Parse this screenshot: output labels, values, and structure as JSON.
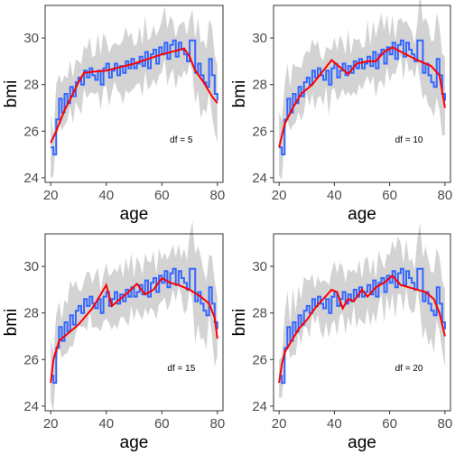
{
  "figure": {
    "panels": [
      "df = 5",
      "df = 10",
      "df = 15",
      "df = 20"
    ]
  },
  "chart_data": [
    {
      "type": "line",
      "xlabel": "age",
      "ylabel": "bmi",
      "annotation": "df = 5",
      "xlim": [
        18,
        82
      ],
      "ylim": [
        23.8,
        31.4
      ],
      "xticks": [
        20,
        40,
        60,
        80
      ],
      "yticks": [
        24,
        26,
        28,
        30
      ],
      "grid": false,
      "series": [
        {
          "role": "observed",
          "color": "#3366ff",
          "x": [
            20,
            21,
            22,
            23,
            24,
            25,
            26,
            27,
            28,
            29,
            30,
            31,
            32,
            33,
            34,
            35,
            36,
            37,
            38,
            39,
            40,
            41,
            42,
            43,
            44,
            45,
            46,
            47,
            48,
            49,
            50,
            51,
            52,
            53,
            54,
            55,
            56,
            57,
            58,
            59,
            60,
            61,
            62,
            63,
            64,
            65,
            66,
            67,
            68,
            69,
            70,
            71,
            72,
            73,
            74,
            75,
            76,
            77,
            78,
            79,
            80
          ],
          "y": [
            25.3,
            25.0,
            26.5,
            27.4,
            26.8,
            27.6,
            27.2,
            27.9,
            27.5,
            28.1,
            28.3,
            28.0,
            28.6,
            28.3,
            28.7,
            28.4,
            28.2,
            28.6,
            28.0,
            28.7,
            28.9,
            28.3,
            28.6,
            28.9,
            28.4,
            28.8,
            28.5,
            29.0,
            28.7,
            29.1,
            28.7,
            28.9,
            29.2,
            28.8,
            29.4,
            28.7,
            29.3,
            29.5,
            28.9,
            29.6,
            29.3,
            29.8,
            29.1,
            29.7,
            29.9,
            29.2,
            29.8,
            29.5,
            29.3,
            29.0,
            29.9,
            29.9,
            28.5,
            28.9,
            28.4,
            28.1,
            27.9,
            29.1,
            28.4,
            27.6,
            27.3
          ]
        },
        {
          "role": "fitted",
          "color": "#ff0000",
          "x": [
            20,
            22,
            25,
            28,
            30,
            32,
            35,
            40,
            45,
            50,
            55,
            60,
            65,
            68,
            70,
            72,
            75,
            78,
            80
          ],
          "y": [
            25.5,
            26.0,
            26.9,
            27.6,
            28.1,
            28.5,
            28.55,
            28.6,
            28.75,
            28.9,
            29.1,
            29.3,
            29.45,
            29.55,
            29.2,
            28.6,
            28.1,
            27.5,
            27.2
          ]
        }
      ]
    },
    {
      "type": "line",
      "xlabel": "age",
      "ylabel": "bmi",
      "annotation": "df = 10",
      "xlim": [
        18,
        82
      ],
      "ylim": [
        23.8,
        31.4
      ],
      "xticks": [
        20,
        40,
        60,
        80
      ],
      "yticks": [
        24,
        26,
        28,
        30
      ],
      "grid": false,
      "series": [
        {
          "role": "observed",
          "color": "#3366ff",
          "x": [
            20,
            21,
            22,
            23,
            24,
            25,
            26,
            27,
            28,
            29,
            30,
            31,
            32,
            33,
            34,
            35,
            36,
            37,
            38,
            39,
            40,
            41,
            42,
            43,
            44,
            45,
            46,
            47,
            48,
            49,
            50,
            51,
            52,
            53,
            54,
            55,
            56,
            57,
            58,
            59,
            60,
            61,
            62,
            63,
            64,
            65,
            66,
            67,
            68,
            69,
            70,
            71,
            72,
            73,
            74,
            75,
            76,
            77,
            78,
            79,
            80
          ],
          "y": [
            25.3,
            25.0,
            26.5,
            27.4,
            26.8,
            27.6,
            27.2,
            27.9,
            27.5,
            28.1,
            28.3,
            28.0,
            28.6,
            28.3,
            28.7,
            28.4,
            28.2,
            28.6,
            28.0,
            28.7,
            28.9,
            28.3,
            28.6,
            28.9,
            28.4,
            28.8,
            28.5,
            29.0,
            28.7,
            29.1,
            28.7,
            28.9,
            29.2,
            28.8,
            29.4,
            28.7,
            29.3,
            29.5,
            28.9,
            29.6,
            29.3,
            29.8,
            29.1,
            29.7,
            29.9,
            29.2,
            29.8,
            29.5,
            29.3,
            29.0,
            29.9,
            29.9,
            28.5,
            28.9,
            28.4,
            28.1,
            27.9,
            29.1,
            28.4,
            27.6,
            27.3
          ]
        },
        {
          "role": "fitted",
          "color": "#ff0000",
          "x": [
            20,
            22,
            25,
            28,
            32,
            36,
            39,
            42,
            45,
            48,
            52,
            55,
            58,
            61,
            65,
            70,
            75,
            78,
            80
          ],
          "y": [
            25.3,
            26.3,
            27.0,
            27.6,
            28.0,
            28.6,
            29.05,
            28.75,
            28.45,
            28.9,
            29.0,
            29.0,
            29.4,
            29.6,
            29.35,
            29.05,
            28.8,
            28.4,
            27.0
          ]
        }
      ]
    },
    {
      "type": "line",
      "xlabel": "age",
      "ylabel": "bmi",
      "annotation": "df = 15",
      "xlim": [
        18,
        82
      ],
      "ylim": [
        23.8,
        31.4
      ],
      "xticks": [
        20,
        40,
        60,
        80
      ],
      "yticks": [
        24,
        26,
        28,
        30
      ],
      "grid": false,
      "series": [
        {
          "role": "observed",
          "color": "#3366ff",
          "x": [
            20,
            21,
            22,
            23,
            24,
            25,
            26,
            27,
            28,
            29,
            30,
            31,
            32,
            33,
            34,
            35,
            36,
            37,
            38,
            39,
            40,
            41,
            42,
            43,
            44,
            45,
            46,
            47,
            48,
            49,
            50,
            51,
            52,
            53,
            54,
            55,
            56,
            57,
            58,
            59,
            60,
            61,
            62,
            63,
            64,
            65,
            66,
            67,
            68,
            69,
            70,
            71,
            72,
            73,
            74,
            75,
            76,
            77,
            78,
            79,
            80
          ],
          "y": [
            25.3,
            25.0,
            26.5,
            27.4,
            26.8,
            27.6,
            27.2,
            27.9,
            27.5,
            28.1,
            28.3,
            28.0,
            28.6,
            28.3,
            28.7,
            28.4,
            28.2,
            28.6,
            28.0,
            28.7,
            28.9,
            28.3,
            28.6,
            28.9,
            28.4,
            28.8,
            28.5,
            29.0,
            28.7,
            29.1,
            28.7,
            28.9,
            29.2,
            28.8,
            29.4,
            28.7,
            29.3,
            29.5,
            28.9,
            29.6,
            29.3,
            29.8,
            29.1,
            29.7,
            29.9,
            29.2,
            29.8,
            29.5,
            29.3,
            29.0,
            29.9,
            29.9,
            28.5,
            28.9,
            28.4,
            28.1,
            27.9,
            29.1,
            28.4,
            27.6,
            27.3
          ]
        },
        {
          "role": "fitted",
          "color": "#ff0000",
          "x": [
            20,
            21,
            23,
            26,
            30,
            35,
            38,
            40,
            42,
            45,
            48,
            51,
            54,
            57,
            60,
            63,
            66,
            70,
            74,
            77,
            79,
            80
          ],
          "y": [
            25.0,
            26.0,
            26.8,
            27.1,
            27.5,
            28.2,
            28.8,
            29.2,
            28.3,
            28.6,
            28.9,
            29.25,
            28.8,
            29.0,
            29.5,
            29.3,
            29.2,
            29.0,
            28.7,
            28.4,
            27.8,
            26.9
          ]
        }
      ]
    },
    {
      "type": "line",
      "xlabel": "age",
      "ylabel": "bmi",
      "annotation": "df = 20",
      "xlim": [
        18,
        82
      ],
      "ylim": [
        23.8,
        31.4
      ],
      "xticks": [
        20,
        40,
        60,
        80
      ],
      "yticks": [
        24,
        26,
        28,
        30
      ],
      "grid": false,
      "series": [
        {
          "role": "observed",
          "color": "#3366ff",
          "x": [
            20,
            21,
            22,
            23,
            24,
            25,
            26,
            27,
            28,
            29,
            30,
            31,
            32,
            33,
            34,
            35,
            36,
            37,
            38,
            39,
            40,
            41,
            42,
            43,
            44,
            45,
            46,
            47,
            48,
            49,
            50,
            51,
            52,
            53,
            54,
            55,
            56,
            57,
            58,
            59,
            60,
            61,
            62,
            63,
            64,
            65,
            66,
            67,
            68,
            69,
            70,
            71,
            72,
            73,
            74,
            75,
            76,
            77,
            78,
            79,
            80
          ],
          "y": [
            25.3,
            25.0,
            26.5,
            27.4,
            26.8,
            27.6,
            27.2,
            27.9,
            27.5,
            28.1,
            28.3,
            28.0,
            28.6,
            28.3,
            28.7,
            28.4,
            28.2,
            28.6,
            28.0,
            28.7,
            28.9,
            28.3,
            28.6,
            28.9,
            28.4,
            28.8,
            28.5,
            29.0,
            28.7,
            29.1,
            28.7,
            28.9,
            29.2,
            28.8,
            29.4,
            28.7,
            29.3,
            29.5,
            28.9,
            29.6,
            29.3,
            29.8,
            29.1,
            29.7,
            29.9,
            29.2,
            29.8,
            29.5,
            29.3,
            29.0,
            29.9,
            29.9,
            28.5,
            28.9,
            28.4,
            28.1,
            27.9,
            29.1,
            28.4,
            27.6,
            27.3
          ]
        },
        {
          "role": "fitted",
          "color": "#ff0000",
          "x": [
            20,
            21,
            22,
            24,
            27,
            30,
            33,
            36,
            39,
            41,
            43,
            45,
            47,
            50,
            52,
            55,
            58,
            61,
            64,
            67,
            70,
            73,
            76,
            78,
            80
          ],
          "y": [
            25.0,
            25.8,
            26.3,
            26.7,
            27.3,
            27.7,
            28.2,
            28.6,
            29.0,
            28.9,
            28.2,
            28.6,
            28.5,
            29.0,
            28.7,
            29.1,
            29.3,
            29.6,
            29.2,
            29.1,
            29.0,
            28.9,
            28.6,
            28.0,
            27.0
          ]
        }
      ]
    }
  ]
}
